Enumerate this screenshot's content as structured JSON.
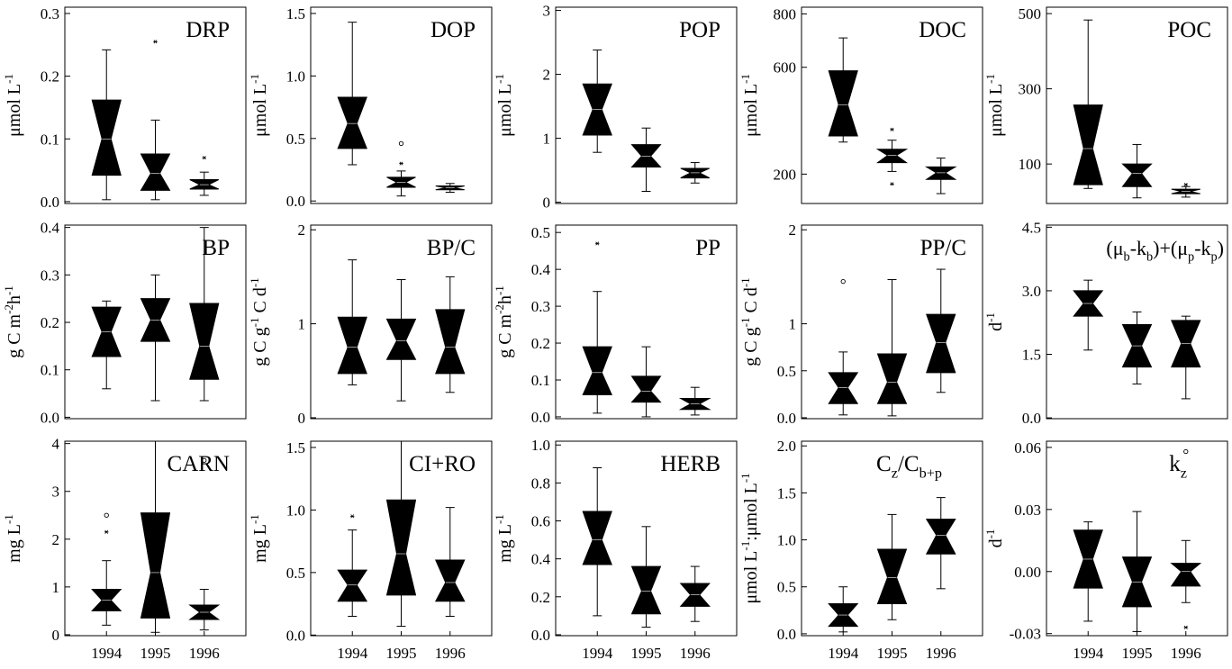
{
  "chart_data": [
    {
      "type": "box",
      "title": "DRP",
      "ylabel": [
        {
          "text": "μmol L"
        },
        {
          "sup": "-1"
        }
      ],
      "ylim": [
        -0.003,
        0.31
      ],
      "yticks": [
        {
          "value": 0,
          "label": "0.0"
        },
        0.1,
        0.2,
        0.3
      ],
      "boxes": [
        {
          "low": 0.003,
          "q1": 0.042,
          "median": 0.1,
          "q3": 0.162,
          "high": 0.242
        },
        {
          "low": 0.003,
          "q1": 0.018,
          "median": 0.045,
          "q3": 0.076,
          "high": 0.13,
          "outliers": [
            {
              "value": 0.255,
              "marker": "star"
            }
          ]
        },
        {
          "low": 0.01,
          "q1": 0.02,
          "median": 0.027,
          "q3": 0.035,
          "high": 0.047,
          "outliers": [
            {
              "value": 0.07,
              "marker": "star"
            }
          ]
        }
      ]
    },
    {
      "type": "box",
      "title": "DOP",
      "ylabel": [
        {
          "text": "μmol L"
        },
        {
          "sup": "-1"
        }
      ],
      "ylim": [
        -0.02,
        1.55
      ],
      "yticks": [
        {
          "value": 0,
          "label": "0.0"
        },
        0.5,
        {
          "value": 1,
          "label": "1.0"
        },
        1.5
      ],
      "boxes": [
        {
          "low": 0.29,
          "q1": 0.42,
          "median": 0.62,
          "q3": 0.83,
          "high": 1.43
        },
        {
          "low": 0.04,
          "q1": 0.11,
          "median": 0.15,
          "q3": 0.19,
          "high": 0.24,
          "outliers": [
            {
              "value": 0.46,
              "marker": "circle"
            },
            {
              "value": 0.3,
              "marker": "star"
            }
          ]
        },
        {
          "low": 0.07,
          "q1": 0.09,
          "median": 0.105,
          "q3": 0.12,
          "high": 0.14
        }
      ]
    },
    {
      "type": "box",
      "title": "POP",
      "ylabel": [
        {
          "text": "μmol L"
        },
        {
          "sup": "-1"
        }
      ],
      "ylim": [
        -0.02,
        3.05
      ],
      "yticks": [
        0,
        1,
        2,
        3
      ],
      "boxes": [
        {
          "low": 0.78,
          "q1": 1.05,
          "median": 1.45,
          "q3": 1.85,
          "high": 2.38
        },
        {
          "low": 0.17,
          "q1": 0.55,
          "median": 0.72,
          "q3": 0.9,
          "high": 1.16
        },
        {
          "low": 0.3,
          "q1": 0.38,
          "median": 0.46,
          "q3": 0.53,
          "high": 0.62
        }
      ]
    },
    {
      "type": "box",
      "title": "DOC",
      "ylabel": [
        {
          "text": "μmol L"
        },
        {
          "sup": "-1"
        }
      ],
      "ylim": [
        90,
        825
      ],
      "yticks": [
        200,
        600,
        800
      ],
      "boxes": [
        {
          "low": 320,
          "q1": 343,
          "median": 460,
          "q3": 587,
          "high": 710
        },
        {
          "low": 210,
          "q1": 243,
          "median": 270,
          "q3": 293,
          "high": 327,
          "outliers": [
            {
              "value": 367,
              "marker": "star"
            },
            {
              "value": 163,
              "marker": "star"
            }
          ]
        },
        {
          "low": 127,
          "q1": 180,
          "median": 205,
          "q3": 227,
          "high": 260
        }
      ]
    },
    {
      "type": "box",
      "title": "POC",
      "ylabel": [
        {
          "text": "μmol L"
        },
        {
          "sup": "-1"
        }
      ],
      "ylim": [
        -5,
        517
      ],
      "yticks": [
        100,
        300,
        500
      ],
      "boxes": [
        {
          "low": 35,
          "q1": 45,
          "median": 141,
          "q3": 257,
          "high": 483
        },
        {
          "low": 10,
          "q1": 40,
          "median": 75,
          "q3": 100,
          "high": 152
        },
        {
          "low": 12,
          "q1": 21,
          "median": 27,
          "q3": 33,
          "high": 40,
          "outliers": [
            {
              "value": 45,
              "marker": "star"
            }
          ]
        }
      ]
    },
    {
      "type": "box",
      "title": "BP",
      "ylabel": [
        {
          "text": "g C m"
        },
        {
          "sup": "-2"
        },
        {
          "text": "h"
        },
        {
          "sup": "-1"
        }
      ],
      "ylim": [
        -0.003,
        0.405
      ],
      "yticks": [
        {
          "value": 0,
          "label": "0.0"
        },
        0.1,
        0.2,
        0.3,
        0.4
      ],
      "boxes": [
        {
          "low": 0.06,
          "q1": 0.128,
          "median": 0.18,
          "q3": 0.232,
          "high": 0.245
        },
        {
          "low": 0.035,
          "q1": 0.16,
          "median": 0.205,
          "q3": 0.25,
          "high": 0.3
        },
        {
          "low": 0.035,
          "q1": 0.08,
          "median": 0.15,
          "q3": 0.24,
          "high": 0.4
        }
      ]
    },
    {
      "type": "box",
      "title": "BP/C",
      "ylabel": [
        {
          "text": "g C g"
        },
        {
          "sup": "-1"
        },
        {
          "text": " C d"
        },
        {
          "sup": "-1"
        }
      ],
      "ylim": [
        -0.01,
        2.05
      ],
      "yticks": [
        0,
        1,
        2
      ],
      "boxes": [
        {
          "low": 0.35,
          "q1": 0.47,
          "median": 0.75,
          "q3": 1.07,
          "high": 1.68
        },
        {
          "low": 0.18,
          "q1": 0.62,
          "median": 0.82,
          "q3": 1.05,
          "high": 1.47
        },
        {
          "low": 0.27,
          "q1": 0.47,
          "median": 0.75,
          "q3": 1.15,
          "high": 1.5
        }
      ]
    },
    {
      "type": "box",
      "title": "PP",
      "ylabel": [
        {
          "text": "g C m"
        },
        {
          "sup": "-2"
        },
        {
          "text": "h"
        },
        {
          "sup": "-1"
        }
      ],
      "ylim": [
        -0.005,
        0.52
      ],
      "yticks": [
        {
          "value": 0,
          "label": "0.0"
        },
        0.1,
        0.2,
        0.3,
        0.4,
        0.5
      ],
      "boxes": [
        {
          "low": 0.01,
          "q1": 0.06,
          "median": 0.12,
          "q3": 0.19,
          "high": 0.34,
          "outliers": [
            {
              "value": 0.47,
              "marker": "star"
            }
          ]
        },
        {
          "low": 0.0,
          "q1": 0.04,
          "median": 0.07,
          "q3": 0.11,
          "high": 0.19
        },
        {
          "low": 0.005,
          "q1": 0.02,
          "median": 0.035,
          "q3": 0.05,
          "high": 0.08
        }
      ]
    },
    {
      "type": "box",
      "title": "PP/C",
      "ylabel": [
        {
          "text": "g C g"
        },
        {
          "sup": "-1"
        },
        {
          "text": " C d"
        },
        {
          "sup": "-1"
        }
      ],
      "ylim": [
        -0.01,
        2.05
      ],
      "yticks": [
        {
          "value": 0,
          "label": "0.0"
        },
        0.5,
        1,
        2
      ],
      "boxes": [
        {
          "low": 0.03,
          "q1": 0.15,
          "median": 0.32,
          "q3": 0.48,
          "high": 0.7,
          "outliers": [
            {
              "value": 1.45,
              "marker": "circle"
            }
          ]
        },
        {
          "low": 0.02,
          "q1": 0.15,
          "median": 0.38,
          "q3": 0.68,
          "high": 1.47
        },
        {
          "low": 0.27,
          "q1": 0.48,
          "median": 0.8,
          "q3": 1.1,
          "high": 1.58
        }
      ]
    },
    {
      "type": "box",
      "title": [
        {
          "text": "(μ"
        },
        {
          "sub": "b"
        },
        {
          "text": "-k"
        },
        {
          "sub": "b"
        },
        {
          "text": ")+(μ"
        },
        {
          "sub": "p"
        },
        {
          "text": "-k"
        },
        {
          "sub": "p"
        },
        {
          "text": ")"
        }
      ],
      "ylabel": [
        {
          "text": "d"
        },
        {
          "sup": "-1"
        }
      ],
      "ylim": [
        -0.02,
        4.55
      ],
      "yticks": [
        {
          "value": 0,
          "label": "0.0"
        },
        1.5,
        {
          "value": 3,
          "label": "3.0"
        },
        4.5
      ],
      "boxes": [
        {
          "low": 1.6,
          "q1": 2.4,
          "median": 2.7,
          "q3": 3.0,
          "high": 3.25
        },
        {
          "low": 0.8,
          "q1": 1.2,
          "median": 1.7,
          "q3": 2.2,
          "high": 2.5
        },
        {
          "low": 0.45,
          "q1": 1.2,
          "median": 1.75,
          "q3": 2.3,
          "high": 2.4
        }
      ]
    },
    {
      "type": "box",
      "title": "CARN",
      "ylabel": [
        {
          "text": "mg L"
        },
        {
          "sup": "-1"
        }
      ],
      "ylim": [
        -0.02,
        4.05
      ],
      "yticks": [
        0,
        1,
        2,
        3,
        4
      ],
      "categories": [
        "1994",
        "1995",
        "1996"
      ],
      "boxes": [
        {
          "low": 0.2,
          "q1": 0.5,
          "median": 0.72,
          "q3": 0.95,
          "high": 1.55,
          "outliers": [
            {
              "value": 2.5,
              "marker": "circle"
            },
            {
              "value": 2.15,
              "marker": "star"
            }
          ]
        },
        {
          "low": 0.05,
          "q1": 0.35,
          "median": 1.3,
          "q3": 2.55,
          "high": 4.05
        },
        {
          "low": 0.1,
          "q1": 0.32,
          "median": 0.47,
          "q3": 0.62,
          "high": 0.95,
          "outliers": [
            {
              "value": 3.65,
              "marker": "circle"
            }
          ]
        }
      ]
    },
    {
      "type": "box",
      "title": "CI+RO",
      "ylabel": [
        {
          "text": "mg L"
        },
        {
          "sup": "-1"
        }
      ],
      "ylim": [
        -0.005,
        1.55
      ],
      "yticks": [
        {
          "value": 0,
          "label": "0.0"
        },
        0.5,
        {
          "value": 1,
          "label": "1.0"
        },
        1.5
      ],
      "categories": [
        "1994",
        "1995",
        "1996"
      ],
      "boxes": [
        {
          "low": 0.15,
          "q1": 0.27,
          "median": 0.4,
          "q3": 0.52,
          "high": 0.84,
          "outliers": [
            {
              "value": 0.95,
              "marker": "star"
            }
          ]
        },
        {
          "low": 0.07,
          "q1": 0.32,
          "median": 0.65,
          "q3": 1.08,
          "high": 1.55
        },
        {
          "low": 0.15,
          "q1": 0.27,
          "median": 0.42,
          "q3": 0.6,
          "high": 1.02
        }
      ]
    },
    {
      "type": "box",
      "title": "HERB",
      "ylabel": [
        {
          "text": "mg L"
        },
        {
          "sup": "-1"
        }
      ],
      "ylim": [
        -0.005,
        1.02
      ],
      "yticks": [
        {
          "value": 0,
          "label": "0.0"
        },
        0.2,
        0.4,
        0.6,
        0.8,
        {
          "value": 1,
          "label": "1.0"
        }
      ],
      "categories": [
        "1994",
        "1995",
        "1996"
      ],
      "boxes": [
        {
          "low": 0.1,
          "q1": 0.37,
          "median": 0.5,
          "q3": 0.65,
          "high": 0.88
        },
        {
          "low": 0.04,
          "q1": 0.11,
          "median": 0.23,
          "q3": 0.36,
          "high": 0.57
        },
        {
          "low": 0.07,
          "q1": 0.15,
          "median": 0.21,
          "q3": 0.27,
          "high": 0.36
        }
      ]
    },
    {
      "type": "box",
      "title": [
        {
          "text": "C"
        },
        {
          "sub": "z"
        },
        {
          "text": "/C"
        },
        {
          "sub": "b+p"
        }
      ],
      "ylabel": [
        {
          "text": "μmol L"
        },
        {
          "sup": "-1"
        },
        {
          "text": ":μmol L"
        },
        {
          "sup": "-1"
        }
      ],
      "ylim": [
        -0.02,
        2.05
      ],
      "yticks": [
        {
          "value": 0,
          "label": "0.0"
        },
        0.5,
        {
          "value": 1,
          "label": "1.0"
        },
        1.5,
        {
          "value": 2,
          "label": "2.0"
        }
      ],
      "categories": [
        "1994",
        "1995",
        "1996"
      ],
      "boxes": [
        {
          "low": 0.02,
          "q1": 0.08,
          "median": 0.2,
          "q3": 0.32,
          "high": 0.5
        },
        {
          "low": 0.15,
          "q1": 0.32,
          "median": 0.6,
          "q3": 0.9,
          "high": 1.27
        },
        {
          "low": 0.48,
          "q1": 0.85,
          "median": 1.05,
          "q3": 1.22,
          "high": 1.45
        }
      ]
    },
    {
      "type": "box",
      "title": [
        {
          "text": "k"
        },
        {
          "sub": "z"
        }
      ],
      "ylabel": [
        {
          "text": "d"
        },
        {
          "sup": "-1"
        }
      ],
      "ylim": [
        -0.031,
        0.063
      ],
      "yticks": [
        -0.03,
        {
          "value": 0,
          "label": "0.00"
        },
        0.03,
        0.06
      ],
      "categories": [
        "1994",
        "1995",
        "1996"
      ],
      "boxes": [
        {
          "low": -0.024,
          "q1": -0.008,
          "median": 0.006,
          "q3": 0.02,
          "high": 0.024
        },
        {
          "low": -0.029,
          "q1": -0.017,
          "median": -0.005,
          "q3": 0.007,
          "high": 0.029
        },
        {
          "low": -0.015,
          "q1": -0.007,
          "median": 0.0,
          "q3": 0.004,
          "high": 0.015,
          "outliers": [
            {
              "value": 0.058,
              "marker": "circle"
            },
            {
              "value": -0.027,
              "marker": "star"
            }
          ]
        }
      ]
    }
  ]
}
